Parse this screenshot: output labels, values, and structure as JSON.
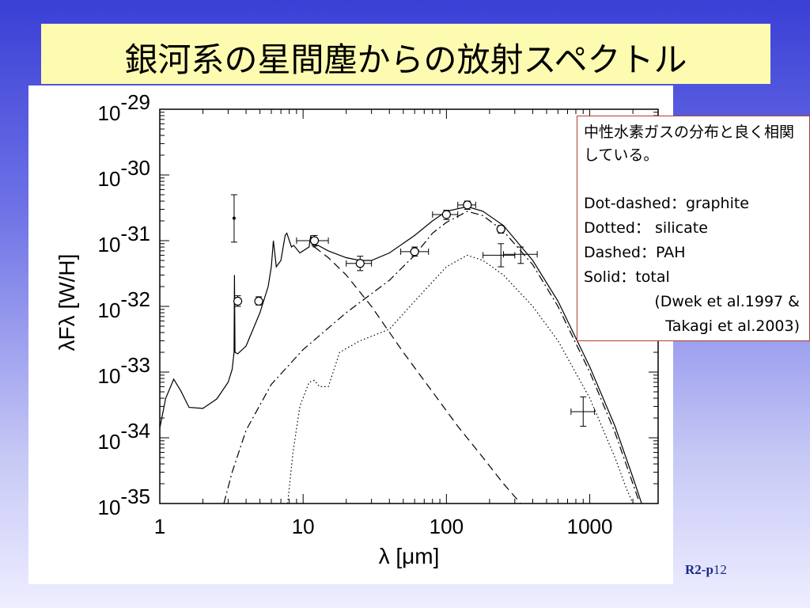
{
  "slide": {
    "title": "銀河系の星間塵からの放射スペクトル",
    "page_prefix": "R2-p",
    "page_number": "12"
  },
  "notes": {
    "comment": "中性水素ガスの分布と良く相関している。",
    "lines": [
      "Dot-dashed：graphite",
      "Dotted： silicate",
      "Dashed：PAH",
      "Solid：total"
    ],
    "ref1": "(Dwek et al.1997 &",
    "ref2": "Takagi et al.2003)"
  },
  "chart_data": {
    "type": "line",
    "xlabel": "λ [μm]",
    "ylabel": "λFλ [W/H]",
    "x_scale": "log",
    "y_scale": "log",
    "xlim": [
      1,
      3000
    ],
    "ylim": [
      1e-35,
      1e-29
    ],
    "x_ticks": [
      {
        "v": 1,
        "label": "1"
      },
      {
        "v": 10,
        "label": "10"
      },
      {
        "v": 100,
        "label": "100"
      },
      {
        "v": 1000,
        "label": "1000"
      }
    ],
    "y_ticks": [
      {
        "v": -29,
        "base": "10",
        "exp": "-29"
      },
      {
        "v": -30,
        "base": "10",
        "exp": "-30"
      },
      {
        "v": -31,
        "base": "10",
        "exp": "-31"
      },
      {
        "v": -32,
        "base": "10",
        "exp": "-32"
      },
      {
        "v": -33,
        "base": "10",
        "exp": "-33"
      },
      {
        "v": -34,
        "base": "10",
        "exp": "-34"
      },
      {
        "v": -35,
        "base": "10",
        "exp": "-35"
      }
    ],
    "series": [
      {
        "style": "solid",
        "points": [
          [
            1.0,
            1.4e-34
          ],
          [
            1.1,
            4e-34
          ],
          [
            1.25,
            7.8e-34
          ],
          [
            1.4,
            5.2e-34
          ],
          [
            1.6,
            2.9e-34
          ],
          [
            2.0,
            2.8e-34
          ],
          [
            2.5,
            3.9e-34
          ],
          [
            3.0,
            7e-34
          ],
          [
            3.2,
            1.1e-33
          ],
          [
            3.3,
            2e-33
          ],
          [
            3.32,
            3e-32
          ],
          [
            3.35,
            2e-33
          ],
          [
            3.5,
            1.9e-33
          ],
          [
            4.0,
            2.5e-33
          ],
          [
            5.0,
            8e-33
          ],
          [
            5.7,
            2e-32
          ],
          [
            6.0,
            4e-32
          ],
          [
            6.2,
            1e-31
          ],
          [
            6.5,
            4e-32
          ],
          [
            7.0,
            5e-32
          ],
          [
            7.5,
            1.2e-31
          ],
          [
            7.7,
            1.3e-31
          ],
          [
            8.3,
            8e-32
          ],
          [
            8.6,
            8.5e-32
          ],
          [
            9.5,
            6.5e-32
          ],
          [
            11.0,
            8e-32
          ],
          [
            11.3,
            1.2e-31
          ],
          [
            11.8,
            8e-32
          ],
          [
            12.7,
            8.5e-32
          ],
          [
            15,
            7e-32
          ],
          [
            20,
            5.5e-32
          ],
          [
            25,
            5e-32
          ],
          [
            30,
            5e-32
          ],
          [
            40,
            6.5e-32
          ],
          [
            60,
            1.2e-31
          ],
          [
            80,
            2e-31
          ],
          [
            100,
            2.8e-31
          ],
          [
            140,
            3.3e-31
          ],
          [
            180,
            2.8e-31
          ],
          [
            250,
            1.7e-31
          ],
          [
            400,
            5e-32
          ],
          [
            600,
            1.2e-32
          ],
          [
            1000,
            1.2e-33
          ],
          [
            1500,
            1.5e-34
          ],
          [
            2000,
            2.5e-35
          ],
          [
            2300,
            1e-35
          ]
        ]
      },
      {
        "style": "dashdot",
        "points": [
          [
            2.8,
            1e-35
          ],
          [
            3.2,
            3e-35
          ],
          [
            4.0,
            1.3e-34
          ],
          [
            6.0,
            6.5e-34
          ],
          [
            10,
            2.2e-33
          ],
          [
            20,
            8e-33
          ],
          [
            40,
            2.5e-32
          ],
          [
            60,
            6e-32
          ],
          [
            80,
            1.3e-31
          ],
          [
            100,
            1.9e-31
          ],
          [
            140,
            2.8e-31
          ],
          [
            180,
            2.4e-31
          ],
          [
            250,
            1.4e-31
          ],
          [
            400,
            4.3e-32
          ],
          [
            600,
            1e-32
          ],
          [
            1000,
            1e-33
          ],
          [
            1500,
            1.2e-34
          ],
          [
            2000,
            2e-35
          ],
          [
            2200,
            1.1e-35
          ]
        ]
      },
      {
        "style": "dotted",
        "points": [
          [
            7.8,
            1e-35
          ],
          [
            8.5,
            6e-35
          ],
          [
            9.5,
            3e-34
          ],
          [
            11,
            7e-34
          ],
          [
            12,
            7.5e-34
          ],
          [
            13,
            6e-34
          ],
          [
            15,
            6e-34
          ],
          [
            18,
            2e-33
          ],
          [
            25,
            3e-33
          ],
          [
            40,
            4.5e-33
          ],
          [
            60,
            1.2e-32
          ],
          [
            100,
            4e-32
          ],
          [
            140,
            6e-32
          ],
          [
            180,
            5e-32
          ],
          [
            250,
            3e-32
          ],
          [
            400,
            1e-32
          ],
          [
            600,
            3e-33
          ],
          [
            1000,
            4e-34
          ],
          [
            1500,
            5e-35
          ],
          [
            1800,
            1.7e-35
          ],
          [
            2000,
            1e-35
          ]
        ]
      },
      {
        "style": "dashed",
        "points": [
          [
            12,
            8e-32
          ],
          [
            15,
            5.5e-32
          ],
          [
            20,
            3e-32
          ],
          [
            30,
            1e-32
          ],
          [
            50,
            2e-33
          ],
          [
            80,
            5e-34
          ],
          [
            120,
            1.5e-34
          ],
          [
            180,
            5e-35
          ],
          [
            250,
            2e-35
          ],
          [
            330,
            1e-35
          ]
        ]
      }
    ],
    "points": [
      {
        "x": 3.5,
        "y": 1.2e-32,
        "yerr": [
          1e-32,
          1.45e-32
        ],
        "marker": "circle"
      },
      {
        "x": 4.9,
        "y": 1.2e-32,
        "yerr": [
          1.05e-32,
          1.4e-32
        ],
        "marker": "circle"
      },
      {
        "x": 12,
        "y": 1e-31,
        "xerr": [
          9,
          15
        ],
        "yerr": [
          8.5e-32,
          1.2e-31
        ],
        "marker": "circle"
      },
      {
        "x": 25,
        "y": 4.5e-32,
        "xerr": [
          20,
          30
        ],
        "yerr": [
          3.5e-32,
          5.8e-32
        ],
        "marker": "circle"
      },
      {
        "x": 60,
        "y": 6.8e-32,
        "xerr": [
          48,
          75
        ],
        "yerr": [
          5.8e-32,
          8e-32
        ],
        "marker": "circle"
      },
      {
        "x": 100,
        "y": 2.5e-31,
        "xerr": [
          80,
          120
        ],
        "yerr": [
          2.1e-31,
          2.9e-31
        ],
        "marker": "circle"
      },
      {
        "x": 140,
        "y": 3.5e-31,
        "xerr": [
          120,
          160
        ],
        "yerr": [
          3e-31,
          4e-31
        ],
        "marker": "circle"
      },
      {
        "x": 240,
        "y": 1.5e-31,
        "yerr": [
          1.3e-31,
          1.7e-31
        ],
        "marker": "circle"
      },
      {
        "x": 3.3,
        "y": 2.2e-31,
        "yerr": [
          9.5e-32,
          5e-31
        ],
        "marker": "dot"
      },
      {
        "x": 240,
        "y": 6e-32,
        "xerr": [
          180,
          300
        ],
        "yerr": [
          4e-32,
          9e-32
        ],
        "marker": "none"
      },
      {
        "x": 330,
        "y": 6.2e-32,
        "xerr": [
          250,
          430
        ],
        "yerr": [
          4.5e-32,
          8e-32
        ],
        "marker": "none"
      },
      {
        "x": 900,
        "y": 2.5e-34,
        "xerr": [
          740,
          1080
        ],
        "yerr": [
          1.5e-34,
          4.2e-34
        ],
        "marker": "none"
      }
    ]
  }
}
